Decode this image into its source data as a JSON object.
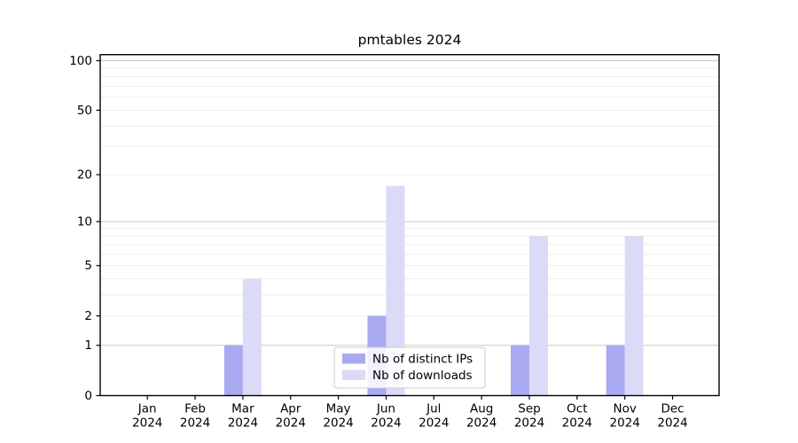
{
  "title": "pmtables 2024",
  "chart_data": {
    "type": "bar",
    "title": "pmtables 2024",
    "categories": [
      "Jan",
      "Feb",
      "Mar",
      "Apr",
      "May",
      "Jun",
      "Jul",
      "Aug",
      "Sep",
      "Oct",
      "Nov",
      "Dec"
    ],
    "year": "2024",
    "series": [
      {
        "name": "Nb of distinct IPs",
        "color": "#a9a9f1",
        "values": [
          0,
          0,
          1,
          0,
          0,
          2,
          0,
          0,
          1,
          0,
          1,
          0
        ]
      },
      {
        "name": "Nb of downloads",
        "color": "#dbdbf8",
        "values": [
          0,
          0,
          4,
          0,
          0,
          17,
          0,
          0,
          8,
          0,
          8,
          0
        ]
      }
    ],
    "y_axis": {
      "scale": "log10(value+1)",
      "range": [
        0,
        108
      ],
      "ticks": [
        0,
        1,
        2,
        5,
        10,
        20,
        50,
        100
      ],
      "major_gridlines": [
        1,
        10,
        100
      ],
      "minor_gridlines": [
        2,
        3,
        4,
        5,
        6,
        7,
        8,
        9,
        20,
        30,
        40,
        50,
        60,
        70,
        80,
        90
      ]
    },
    "xlabel": "",
    "ylabel": "",
    "grid": true,
    "legend_position": "lower center"
  },
  "colors": {
    "background": "#ffffff",
    "axis_spine": "#000000",
    "grid_major": "#c9c9c9",
    "grid_minor": "#ededed",
    "legend_border": "#cccccc",
    "legend_background": "#ffffff",
    "text": "#000000"
  }
}
